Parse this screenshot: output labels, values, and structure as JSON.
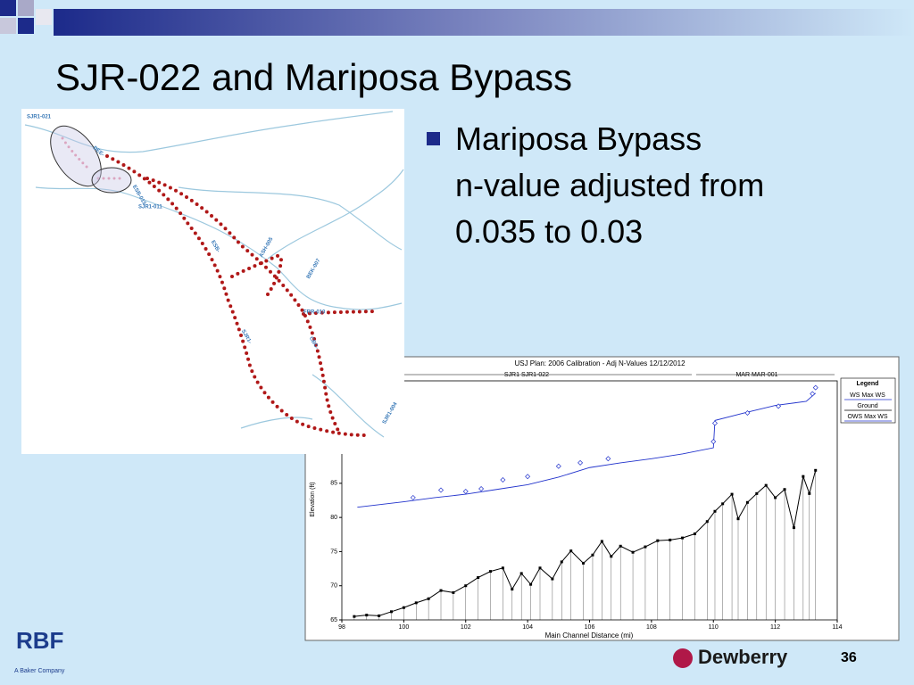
{
  "slide": {
    "title": "SJR-022 and Mariposa Bypass",
    "bullet": "Mariposa Bypass n-value adjusted from 0.035 to 0.03",
    "map_labels": [
      "SJR1-021",
      "DEE-",
      "ESB-015",
      "SJR1-011",
      "ESB-",
      "ASH-005",
      "BEK-007",
      "FRR-010",
      "CBC-",
      "SJR1-",
      "SJR1-004"
    ],
    "footer": {
      "logo": "RBF",
      "logo_sub": "A Baker Company",
      "brand": "Dewberry",
      "page": "36"
    }
  },
  "chart_data": {
    "type": "line",
    "title": "USJ      Plan: 2006 Calibration - Adj N-Values    12/12/2012",
    "reach_labels": [
      "SJR1 SJR1-022",
      "MAR MAR-001"
    ],
    "legend_title": "Legend",
    "x_label": "Main Channel Distance (mi)",
    "y_label": "Elevation (ft)",
    "xlim": [
      98,
      114
    ],
    "xticks": [
      98,
      100,
      102,
      104,
      106,
      108,
      110,
      112,
      114
    ],
    "ylim": [
      65,
      100
    ],
    "yticks": [
      65,
      70,
      75,
      80,
      85
    ],
    "series": [
      {
        "name": "WS  Max WS",
        "color": "#2233cc",
        "x": [
          98.5,
          100,
          101,
          102,
          103,
          104,
          105,
          106,
          107,
          108,
          109,
          110,
          110.05,
          111,
          112,
          113,
          113.3
        ],
        "values": [
          81.5,
          82.3,
          82.9,
          83.4,
          84.1,
          84.8,
          85.9,
          87.3,
          88.0,
          88.6,
          89.3,
          90.2,
          94.2,
          95.3,
          96.4,
          97.0,
          98.2
        ]
      },
      {
        "name": "Ground",
        "color": "#000000",
        "x": [
          98.4,
          98.8,
          99.2,
          99.6,
          100,
          100.4,
          100.8,
          101.2,
          101.6,
          102,
          102.4,
          102.8,
          103.2,
          103.5,
          103.8,
          104.1,
          104.4,
          104.8,
          105.1,
          105.4,
          105.8,
          106.1,
          106.4,
          106.7,
          107.0,
          107.4,
          107.8,
          108.2,
          108.6,
          109,
          109.4,
          109.8,
          110.05,
          110.3,
          110.6,
          110.8,
          111.1,
          111.4,
          111.7,
          112,
          112.3,
          112.6,
          112.9,
          113.1,
          113.3
        ],
        "values": [
          65.5,
          65.7,
          65.6,
          66.2,
          66.8,
          67.5,
          68.1,
          69.3,
          69.0,
          70.0,
          71.2,
          72.1,
          72.6,
          69.5,
          71.8,
          70.2,
          72.6,
          71.0,
          73.5,
          75.1,
          73.3,
          74.5,
          76.5,
          74.3,
          75.8,
          74.9,
          75.7,
          76.6,
          76.7,
          77.0,
          77.6,
          79.4,
          80.9,
          82.0,
          83.4,
          79.8,
          82.2,
          83.5,
          84.7,
          82.9,
          84.1,
          78.5,
          86.0,
          83.5,
          86.9
        ]
      },
      {
        "name": "OWS  Max WS",
        "color": "#2233cc",
        "x": [
          100.3,
          101.2,
          102,
          102.5,
          103.2,
          104,
          105,
          105.7,
          106.6,
          110,
          110.05,
          111.1,
          112.1,
          113.2,
          113.3
        ],
        "values": [
          82.9,
          84.0,
          83.8,
          84.2,
          85.5,
          86.0,
          87.5,
          88.0,
          88.6,
          91.1,
          93.8,
          95.3,
          96.3,
          98.1,
          99.0
        ]
      }
    ]
  }
}
